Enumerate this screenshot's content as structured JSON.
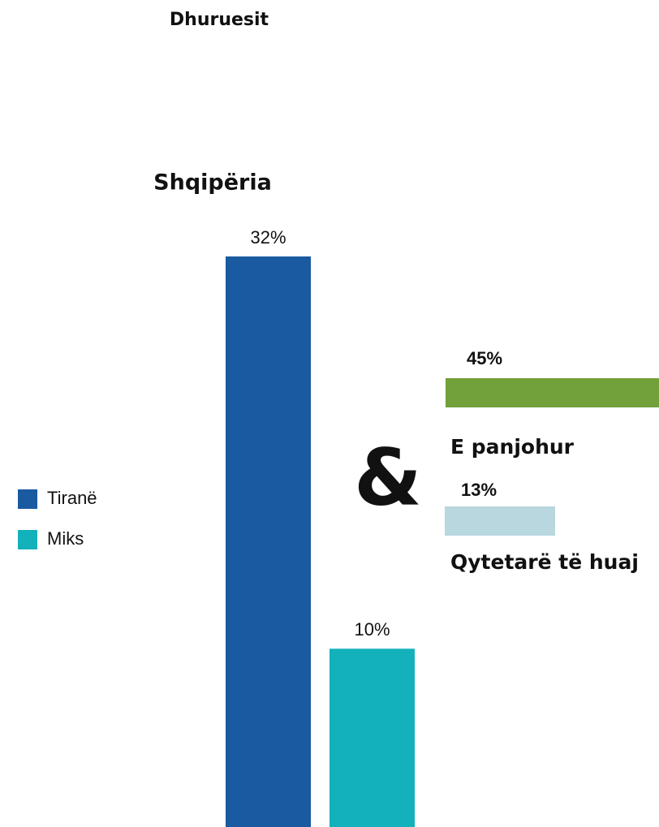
{
  "title": "Dhuruesit",
  "connector": "&",
  "chart_data": [
    {
      "type": "bar",
      "title": "Shqipëria",
      "ylim": [
        0,
        32
      ],
      "series": [
        {
          "name": "Tiranë",
          "color": "#1a5aa0",
          "values": [
            32
          ],
          "value_labels": [
            "32%"
          ]
        },
        {
          "name": "Miks",
          "color": "#13b1bb",
          "values": [
            10
          ],
          "value_labels": [
            "10%"
          ]
        }
      ]
    },
    {
      "type": "hbar",
      "xlim": [
        0,
        50
      ],
      "categories": [
        "E panjohur",
        "Qytetarë të huaj"
      ],
      "values": [
        45,
        13
      ],
      "value_labels": [
        "45%",
        "13%"
      ],
      "colors": [
        "#72a03a",
        "#b8d7de"
      ]
    }
  ]
}
